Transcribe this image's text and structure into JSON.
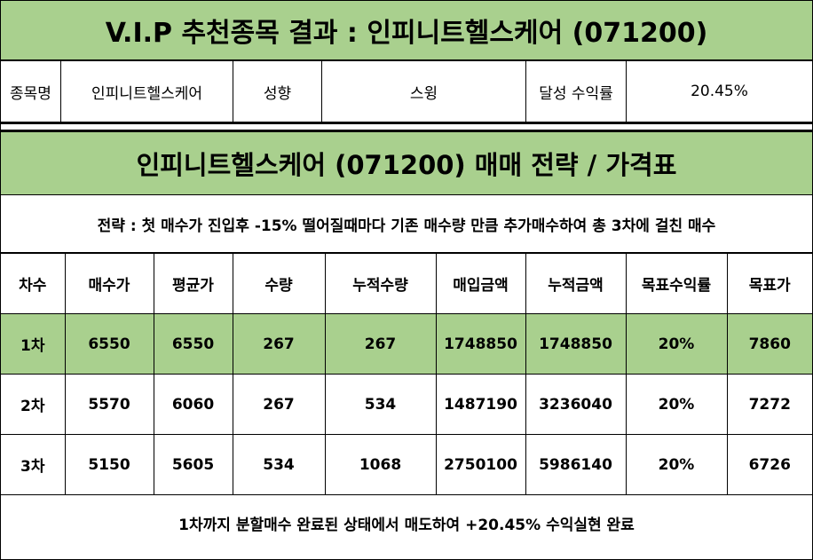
{
  "header": {
    "title": "V.I.P 추천종목 결과 : 인피니트헬스케어 (071200)"
  },
  "info": {
    "name_label": "종목명",
    "name_value": "인피니트헬스케어",
    "type_label": "성향",
    "type_value": "스윙",
    "return_label": "달성 수익률",
    "return_value": "20.45%"
  },
  "strategy": {
    "title": "인피니트헬스케어 (071200) 매매 전략 / 가격표",
    "description": "전략 : 첫 매수가 진입후 -15% 떨어질때마다 기존 매수량 만큼 추가매수하여 총 3차에 걸친 매수"
  },
  "table": {
    "headers": [
      "차수",
      "매수가",
      "평균가",
      "수량",
      "누적수량",
      "매입금액",
      "누적금액",
      "목표수익률",
      "목표가"
    ],
    "rows": [
      [
        "1차",
        "6550",
        "6550",
        "267",
        "267",
        "1748850",
        "1748850",
        "20%",
        "7860"
      ],
      [
        "2차",
        "5570",
        "6060",
        "267",
        "534",
        "1487190",
        "3236040",
        "20%",
        "7272"
      ],
      [
        "3차",
        "5150",
        "5605",
        "534",
        "1068",
        "2750100",
        "5986140",
        "20%",
        "6726"
      ]
    ]
  },
  "footer": {
    "note": "1차까지 분할매수 완료된 상태에서 매도하여 +20.45% 수익실현 완료"
  },
  "colors": {
    "highlight": "#a9d08e",
    "border": "#000000"
  }
}
